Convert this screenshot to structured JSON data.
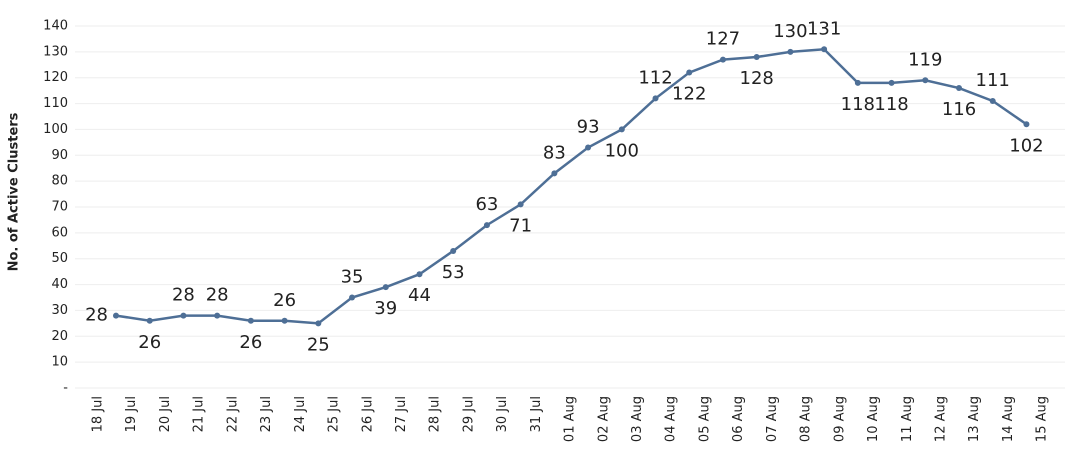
{
  "chart_data": {
    "type": "line",
    "y_label": "No. of Active Clusters",
    "categories": [
      "18 Jul",
      "19 Jul",
      "20 Jul",
      "21 Jul",
      "22 Jul",
      "23 Jul",
      "24 Jul",
      "25 Jul",
      "26 Jul",
      "27 Jul",
      "28 Jul",
      "29 Jul",
      "30 Jul",
      "31 Jul",
      "01 Aug",
      "02 Aug",
      "03 Aug",
      "04 Aug",
      "05 Aug",
      "06 Aug",
      "07 Aug",
      "08 Aug",
      "09 Aug",
      "10 Aug",
      "11 Aug",
      "12 Aug",
      "13 Aug",
      "14 Aug",
      "15 Aug"
    ],
    "series": [
      {
        "name": "Active Clusters",
        "color": "#4e6f96",
        "values": [
          28,
          26,
          28,
          28,
          26,
          26,
          25,
          35,
          39,
          44,
          53,
          63,
          71,
          83,
          93,
          100,
          112,
          122,
          127,
          128,
          130,
          131,
          118,
          118,
          119,
          116,
          111,
          102,
          null
        ]
      }
    ],
    "ylim": [
      0,
      140
    ],
    "yticks": [
      {
        "value": 0,
        "label": "-"
      },
      10,
      20,
      30,
      40,
      50,
      60,
      70,
      80,
      90,
      100,
      110,
      120,
      130,
      140
    ],
    "grid": true
  }
}
